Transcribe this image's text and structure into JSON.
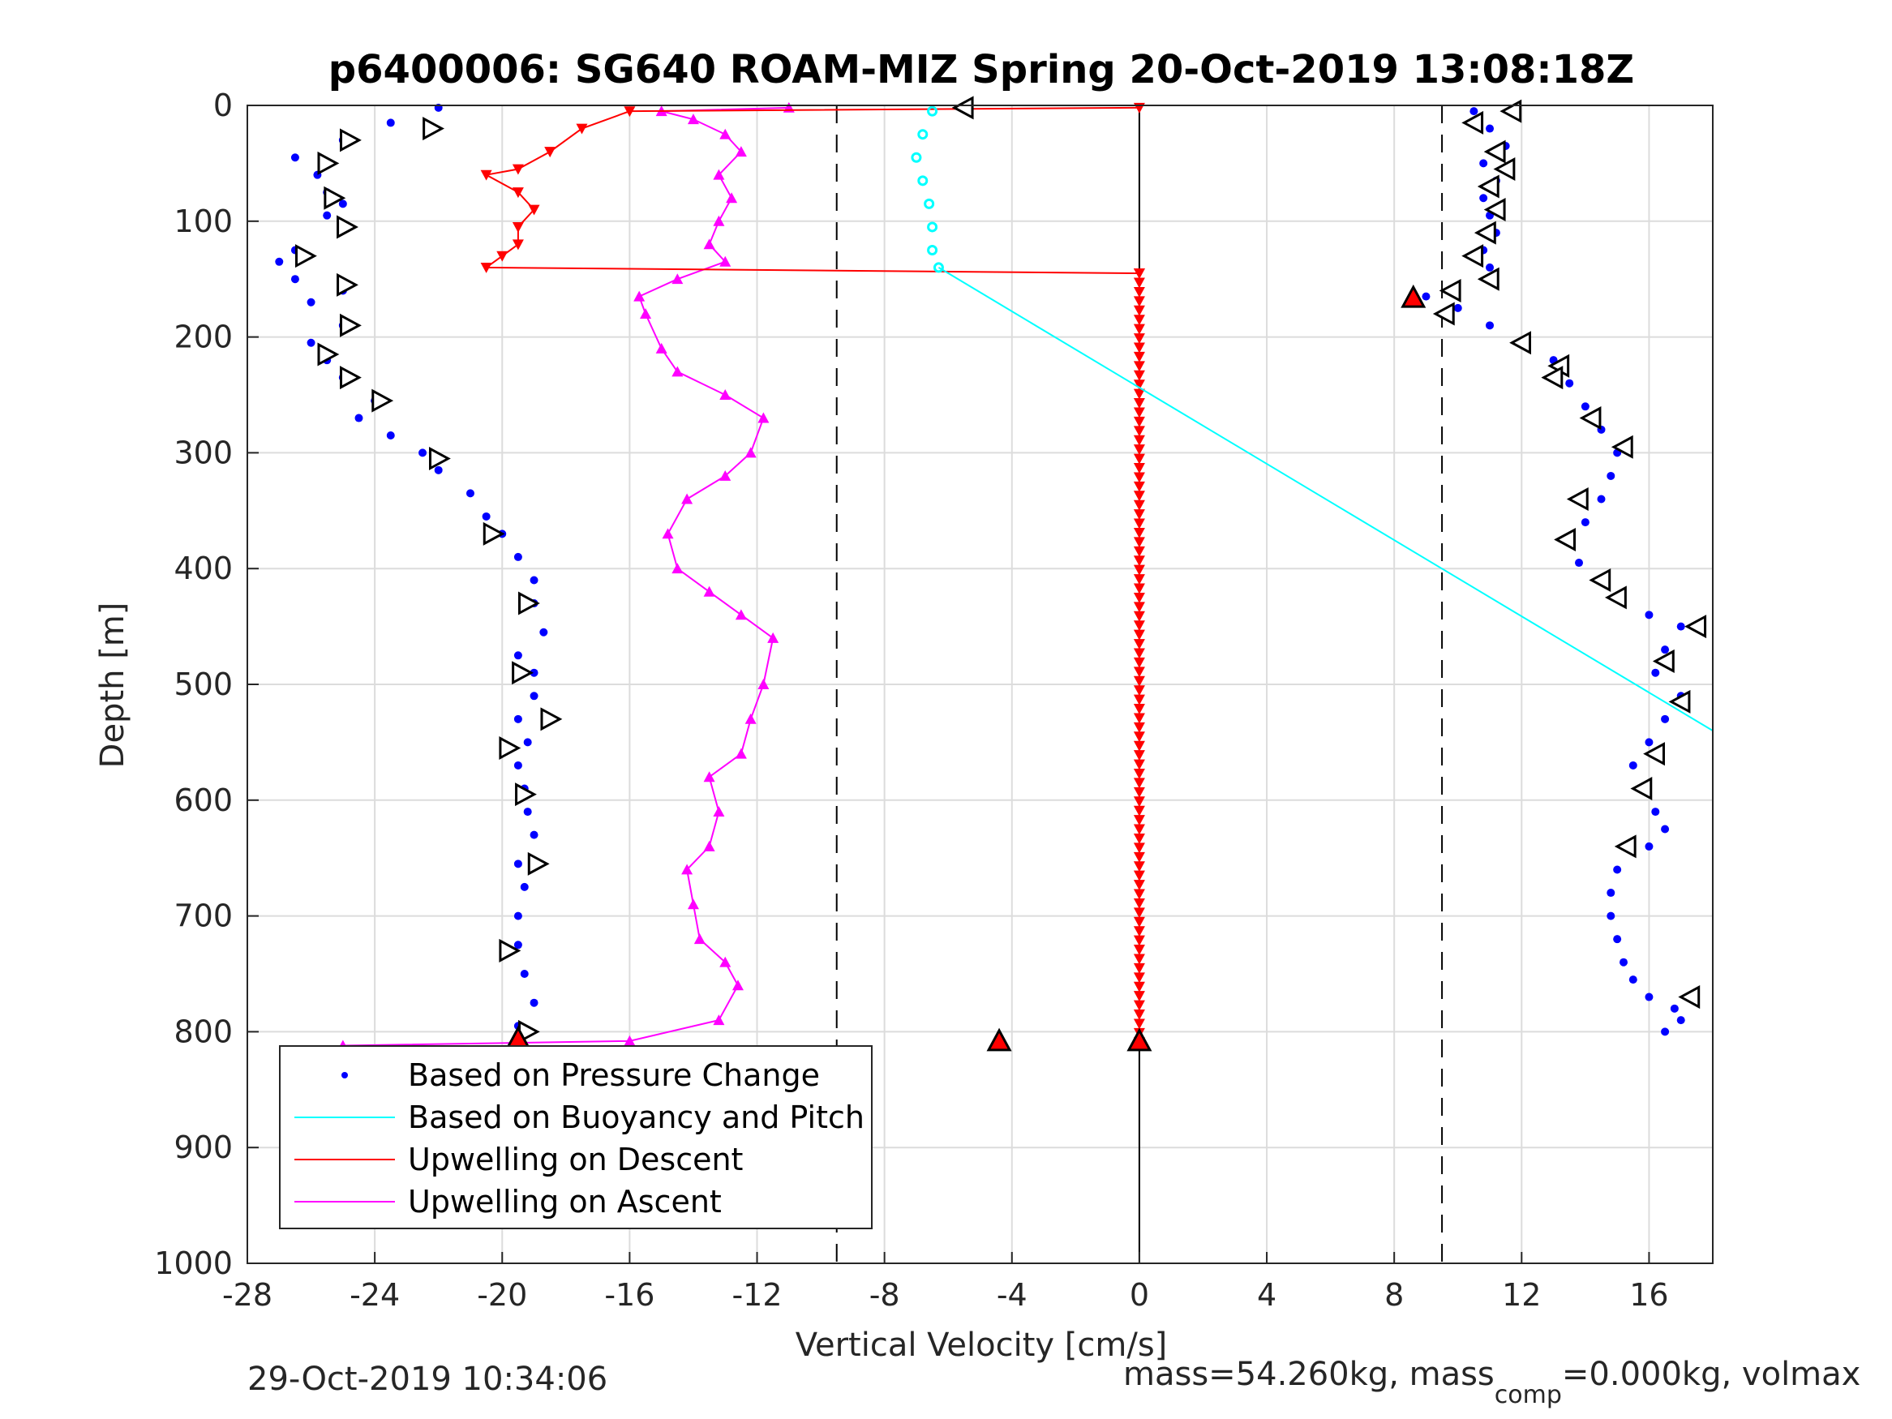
{
  "chart_data": {
    "type": "scatter",
    "title": "p6400006: SG640 ROAM-MIZ Spring 20-Oct-2019 13:08:18Z",
    "xlabel": "Vertical Velocity [cm/s]",
    "ylabel": "Depth [m]",
    "xlim": [
      -28,
      18
    ],
    "ylim": [
      0,
      1000
    ],
    "y_reversed": true,
    "grid": true,
    "xticks": [
      "-28",
      "-24",
      "-20",
      "-16",
      "-12",
      "-8",
      "-4",
      "0",
      "4",
      "8",
      "12",
      "16"
    ],
    "yticks": [
      "0",
      "100",
      "200",
      "300",
      "400",
      "500",
      "600",
      "700",
      "800",
      "900",
      "1000"
    ],
    "reference_lines": {
      "solid_vertical_x": 0,
      "dashed_vertical_x": [
        -9.5,
        9.5
      ]
    },
    "legend_position": "bottom-left",
    "series": [
      {
        "name": "Based on Pressure Change",
        "style": "dots",
        "color": "#0000ff",
        "descent_points": [
          [
            -22,
            2
          ],
          [
            -23.5,
            15
          ],
          [
            -25,
            30
          ],
          [
            -26.5,
            45
          ],
          [
            -25.8,
            60
          ],
          [
            -25.5,
            75
          ],
          [
            -25,
            85
          ],
          [
            -25.5,
            95
          ],
          [
            -25,
            108
          ],
          [
            -26.5,
            125
          ],
          [
            -27,
            135
          ],
          [
            -26.5,
            150
          ],
          [
            -25,
            160
          ],
          [
            -26,
            170
          ],
          [
            -25,
            190
          ],
          [
            -26,
            205
          ],
          [
            -25.5,
            220
          ],
          [
            -25,
            235
          ],
          [
            -24,
            255
          ],
          [
            -24.5,
            270
          ],
          [
            -23.5,
            285
          ],
          [
            -22.5,
            300
          ],
          [
            -22,
            315
          ],
          [
            -21,
            335
          ],
          [
            -20.5,
            355
          ],
          [
            -20,
            370
          ],
          [
            -19.5,
            390
          ],
          [
            -19,
            410
          ],
          [
            -19,
            430
          ],
          [
            -18.7,
            455
          ],
          [
            -19.5,
            475
          ],
          [
            -19,
            490
          ],
          [
            -19,
            510
          ],
          [
            -19.5,
            530
          ],
          [
            -19.2,
            550
          ],
          [
            -19.5,
            570
          ],
          [
            -19.3,
            590
          ],
          [
            -19.2,
            610
          ],
          [
            -19,
            630
          ],
          [
            -19.5,
            655
          ],
          [
            -19.3,
            675
          ],
          [
            -19.5,
            700
          ],
          [
            -19.5,
            725
          ],
          [
            -19.3,
            750
          ],
          [
            -19,
            775
          ],
          [
            -19.5,
            795
          ],
          [
            -19.5,
            805
          ]
        ],
        "ascent_points": [
          [
            10.5,
            5
          ],
          [
            11,
            20
          ],
          [
            11.5,
            35
          ],
          [
            10.8,
            50
          ],
          [
            11.2,
            65
          ],
          [
            10.8,
            80
          ],
          [
            11,
            95
          ],
          [
            11.2,
            110
          ],
          [
            10.8,
            125
          ],
          [
            11,
            140
          ],
          [
            11,
            150
          ],
          [
            9,
            165
          ],
          [
            10,
            175
          ],
          [
            11,
            190
          ],
          [
            12,
            205
          ],
          [
            13,
            220
          ],
          [
            13.5,
            240
          ],
          [
            14,
            260
          ],
          [
            14.5,
            280
          ],
          [
            15,
            300
          ],
          [
            14.8,
            320
          ],
          [
            14.5,
            340
          ],
          [
            14,
            360
          ],
          [
            13.5,
            375
          ],
          [
            13.8,
            395
          ],
          [
            14.5,
            410
          ],
          [
            15,
            425
          ],
          [
            16,
            440
          ],
          [
            17,
            450
          ],
          [
            16.5,
            470
          ],
          [
            16.2,
            490
          ],
          [
            17,
            510
          ],
          [
            16.5,
            530
          ],
          [
            16,
            550
          ],
          [
            15.5,
            570
          ],
          [
            15.8,
            590
          ],
          [
            16.2,
            610
          ],
          [
            16.5,
            625
          ],
          [
            16,
            640
          ],
          [
            15,
            660
          ],
          [
            14.8,
            680
          ],
          [
            14.8,
            700
          ],
          [
            15,
            720
          ],
          [
            15.2,
            740
          ],
          [
            15.5,
            755
          ],
          [
            16,
            770
          ],
          [
            16.8,
            780
          ],
          [
            17,
            790
          ],
          [
            16.5,
            800
          ]
        ]
      },
      {
        "name": "Based on Buoyancy and Pitch",
        "style": "line",
        "color": "#00ffff",
        "line_points": [
          [
            -6.3,
            140
          ],
          [
            18,
            540
          ]
        ],
        "surface_points": [
          [
            -6.5,
            5
          ],
          [
            -6.8,
            25
          ],
          [
            -7,
            45
          ],
          [
            -6.8,
            65
          ],
          [
            -6.6,
            85
          ],
          [
            -6.5,
            105
          ],
          [
            -6.5,
            125
          ],
          [
            -6.3,
            140
          ]
        ]
      },
      {
        "name": "Upwelling on Descent",
        "style": "line-triangle-down",
        "color": "#ff0000",
        "points": [
          [
            0,
            2
          ],
          [
            -16,
            5
          ],
          [
            -17.5,
            20
          ],
          [
            -18.5,
            40
          ],
          [
            -19.5,
            55
          ],
          [
            -20.5,
            60
          ],
          [
            -19.5,
            75
          ],
          [
            -19,
            90
          ],
          [
            -19.5,
            105
          ],
          [
            -19.5,
            120
          ],
          [
            -20,
            130
          ],
          [
            -20.5,
            140
          ],
          [
            0,
            145
          ],
          [
            0,
            810
          ]
        ]
      },
      {
        "name": "Upwelling on Ascent",
        "style": "line-triangle-up",
        "color": "#ff00ff",
        "points": [
          [
            -25,
            812
          ],
          [
            -16,
            808
          ],
          [
            -13.2,
            790
          ],
          [
            -12.6,
            760
          ],
          [
            -13,
            740
          ],
          [
            -13.8,
            720
          ],
          [
            -14,
            690
          ],
          [
            -14.2,
            660
          ],
          [
            -13.5,
            640
          ],
          [
            -13.2,
            610
          ],
          [
            -13.5,
            580
          ],
          [
            -12.5,
            560
          ],
          [
            -12.2,
            530
          ],
          [
            -11.8,
            500
          ],
          [
            -11.5,
            460
          ],
          [
            -12.5,
            440
          ],
          [
            -13.5,
            420
          ],
          [
            -14.5,
            400
          ],
          [
            -14.8,
            370
          ],
          [
            -14.2,
            340
          ],
          [
            -13,
            320
          ],
          [
            -12.2,
            300
          ],
          [
            -11.8,
            270
          ],
          [
            -13,
            250
          ],
          [
            -14.5,
            230
          ],
          [
            -15,
            210
          ],
          [
            -15.5,
            180
          ],
          [
            -15.7,
            165
          ],
          [
            -14.5,
            150
          ],
          [
            -13,
            135
          ],
          [
            -13.5,
            120
          ],
          [
            -13.2,
            100
          ],
          [
            -12.8,
            80
          ],
          [
            -13.2,
            60
          ],
          [
            -12.5,
            40
          ],
          [
            -13,
            25
          ],
          [
            -14,
            12
          ],
          [
            -15,
            5
          ],
          [
            -11,
            2
          ]
        ]
      }
    ],
    "markers": {
      "black_triangles_descent": [
        [
          -22.2,
          20
        ],
        [
          -24.8,
          30
        ],
        [
          -25.5,
          50
        ],
        [
          -25.3,
          80
        ],
        [
          -24.9,
          105
        ],
        [
          -26.2,
          130
        ],
        [
          -24.9,
          155
        ],
        [
          -24.8,
          190
        ],
        [
          -25.5,
          215
        ],
        [
          -24.8,
          235
        ],
        [
          -23.8,
          255
        ],
        [
          -22,
          305
        ],
        [
          -20.3,
          370
        ],
        [
          -19.2,
          430
        ],
        [
          -19.4,
          490
        ],
        [
          -18.5,
          530
        ],
        [
          -19.8,
          555
        ],
        [
          -19.3,
          595
        ],
        [
          -18.9,
          655
        ],
        [
          -19.8,
          730
        ],
        [
          -19.2,
          800
        ]
      ],
      "black_triangles_ascent": [
        [
          -5.5,
          2
        ],
        [
          11.7,
          5
        ],
        [
          10.5,
          15
        ],
        [
          11.2,
          40
        ],
        [
          11.5,
          55
        ],
        [
          11,
          70
        ],
        [
          11.2,
          90
        ],
        [
          10.9,
          110
        ],
        [
          10.5,
          130
        ],
        [
          11,
          150
        ],
        [
          9.8,
          160
        ],
        [
          9.6,
          180
        ],
        [
          12,
          205
        ],
        [
          13.2,
          225
        ],
        [
          13,
          235
        ],
        [
          14.2,
          270
        ],
        [
          15.2,
          295
        ],
        [
          13.8,
          340
        ],
        [
          13.4,
          375
        ],
        [
          14.5,
          410
        ],
        [
          15,
          425
        ],
        [
          17.5,
          450
        ],
        [
          16.5,
          480
        ],
        [
          17,
          515
        ],
        [
          16.2,
          560
        ],
        [
          15.8,
          590
        ],
        [
          15.3,
          640
        ],
        [
          17.3,
          770
        ]
      ],
      "red_triangles": [
        [
          8.6,
          166
        ],
        [
          -19.5,
          806
        ],
        [
          -4.4,
          808
        ],
        [
          0,
          808
        ]
      ]
    },
    "legend": [
      "Based on Pressure Change",
      "Based on Buoyancy and Pitch",
      "Upwelling on Descent",
      "Upwelling on Ascent"
    ]
  },
  "footer": {
    "timestamp": "29-Oct-2019 10:34:06",
    "mass_prefix": "mass=54.260kg, mass",
    "mass_sub": "comp",
    "mass_suffix": "=0.000kg, volmax"
  }
}
